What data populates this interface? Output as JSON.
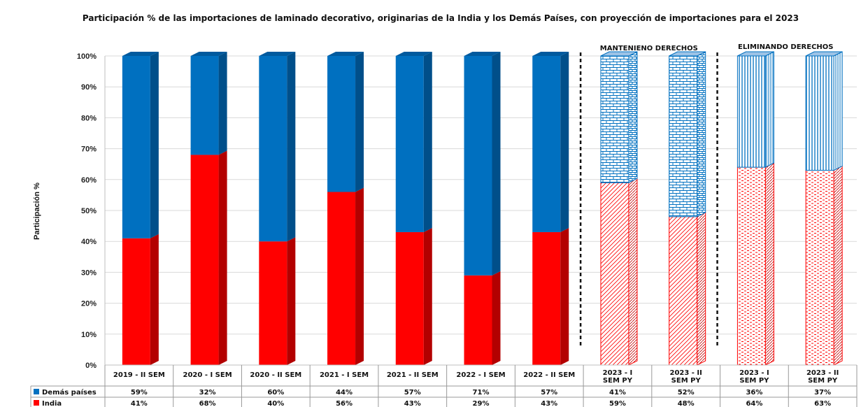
{
  "chart_data": {
    "type": "bar",
    "stacked": true,
    "title": "Participación % de las importaciones de laminado decorativo, originarias de la India y los Demás Países, con proyección de importaciones para el 2023",
    "ylabel": "Participación %",
    "ylim": [
      0,
      100
    ],
    "y_ticks": [
      "0%",
      "10%",
      "20%",
      "30%",
      "40%",
      "50%",
      "60%",
      "70%",
      "80%",
      "90%",
      "100%"
    ],
    "categories": [
      "2019 - II SEM",
      "2020 - I SEM",
      "2020 - II SEM",
      "2021 - I SEM",
      "2021 - II SEM",
      "2022 - I SEM",
      "2022 - II SEM",
      "2023 - I SEM PY",
      "2023 - II SEM PY",
      "2023 - I SEM PY",
      "2023 - II SEM PY"
    ],
    "series": [
      {
        "name": "India",
        "color": "#ff0000",
        "values": [
          41,
          68,
          40,
          56,
          43,
          29,
          43,
          59,
          48,
          64,
          63
        ],
        "labels": [
          "41%",
          "68%",
          "40%",
          "56%",
          "43%",
          "29%",
          "43%",
          "59%",
          "48%",
          "64%",
          "63%"
        ]
      },
      {
        "name": "Demás países",
        "color": "#0070c0",
        "values": [
          59,
          32,
          60,
          44,
          57,
          71,
          57,
          41,
          52,
          36,
          37
        ],
        "labels": [
          "59%",
          "32%",
          "60%",
          "44%",
          "57%",
          "71%",
          "57%",
          "41%",
          "52%",
          "36%",
          "37%"
        ]
      }
    ],
    "annotations": [
      "MANTENIENO  DERECHOS",
      "ELIMINANDO  DERECHOS"
    ],
    "grid": true,
    "legend": "data-table"
  }
}
